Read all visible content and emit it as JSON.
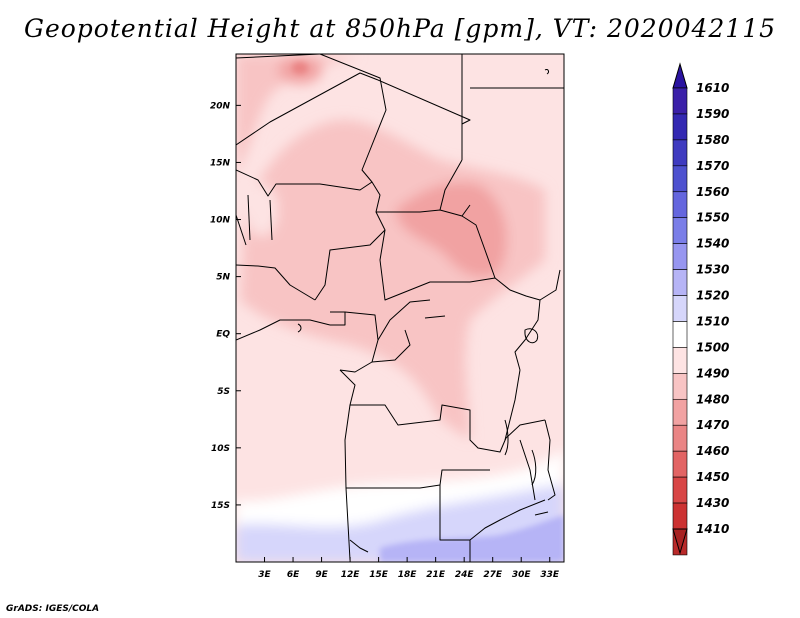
{
  "title": "Geopotential Height at 850hPa [gpm], VT: 2020042115",
  "credit": "GrADS: IGES/COLA",
  "map": {
    "variable": "Geopotential Height",
    "level": "850hPa",
    "units": "gpm",
    "valid_time": "2020042115",
    "lon_range": [
      0,
      34.5
    ],
    "lat_range": [
      -20,
      24.5
    ],
    "lon_ticks": [
      {
        "value": 3,
        "label": "3E"
      },
      {
        "value": 6,
        "label": "6E"
      },
      {
        "value": 9,
        "label": "9E"
      },
      {
        "value": 12,
        "label": "12E"
      },
      {
        "value": 15,
        "label": "15E"
      },
      {
        "value": 18,
        "label": "18E"
      },
      {
        "value": 21,
        "label": "21E"
      },
      {
        "value": 24,
        "label": "24E"
      },
      {
        "value": 27,
        "label": "27E"
      },
      {
        "value": 30,
        "label": "30E"
      },
      {
        "value": 33,
        "label": "33E"
      }
    ],
    "lat_ticks": [
      {
        "value": 20,
        "label": "20N"
      },
      {
        "value": 15,
        "label": "15N"
      },
      {
        "value": 10,
        "label": "10N"
      },
      {
        "value": 5,
        "label": "5N"
      },
      {
        "value": 0,
        "label": "EQ"
      },
      {
        "value": -5,
        "label": "5S"
      },
      {
        "value": -10,
        "label": "10S"
      },
      {
        "value": -15,
        "label": "15S"
      }
    ]
  },
  "colorbar": {
    "levels": [
      {
        "label": "1610",
        "color": "#3a1fa8"
      },
      {
        "label": "1590",
        "color": "#3328b2"
      },
      {
        "label": "1580",
        "color": "#3f3bc0"
      },
      {
        "label": "1570",
        "color": "#4e51cf"
      },
      {
        "label": "1560",
        "color": "#6466de"
      },
      {
        "label": "1550",
        "color": "#7a7ee8"
      },
      {
        "label": "1540",
        "color": "#9796f0"
      },
      {
        "label": "1530",
        "color": "#b6b4f6"
      },
      {
        "label": "1520",
        "color": "#d6d6fb"
      },
      {
        "label": "1510",
        "color": "#ffffff"
      },
      {
        "label": "1500",
        "color": "#fde3e3"
      },
      {
        "label": "1490",
        "color": "#f8c4c4"
      },
      {
        "label": "1480",
        "color": "#f1a2a2"
      },
      {
        "label": "1470",
        "color": "#ea8585"
      },
      {
        "label": "1460",
        "color": "#e26464"
      },
      {
        "label": "1450",
        "color": "#d84646"
      },
      {
        "label": "1430",
        "color": "#cc3232"
      },
      {
        "label": "1410",
        "color": "#b92a2a"
      }
    ],
    "top_arrow_color": "#2a13a0",
    "bottom_arrow_color": "#a82222"
  }
}
